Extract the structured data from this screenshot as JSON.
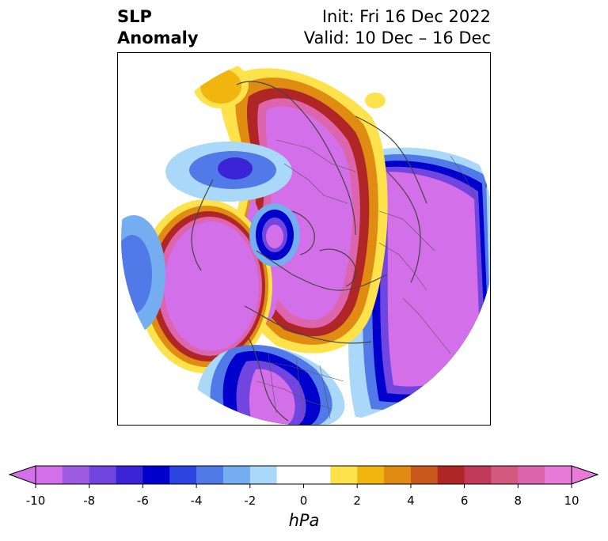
{
  "title": {
    "variable_line1": "SLP",
    "variable_line2": "Anomaly",
    "init_line": "Init: Fri 16 Dec 2022",
    "valid_line": "Valid: 10 Dec – 16 Dec"
  },
  "colorbar": {
    "unit": "hPa",
    "tick_labels": [
      "-10",
      "-8",
      "-6",
      "-4",
      "-2",
      "0",
      "2",
      "4",
      "6",
      "8",
      "10"
    ],
    "bins": [
      {
        "from": -10,
        "to": -9,
        "color": "#d36fe8"
      },
      {
        "from": -9,
        "to": -8,
        "color": "#a05be3"
      },
      {
        "from": -8,
        "to": -7,
        "color": "#7145df"
      },
      {
        "from": -7,
        "to": -6,
        "color": "#3a24d6"
      },
      {
        "from": -6,
        "to": -5,
        "color": "#0000cc"
      },
      {
        "from": -5,
        "to": -4,
        "color": "#2c45e2"
      },
      {
        "from": -4,
        "to": -3,
        "color": "#517ae8"
      },
      {
        "from": -3,
        "to": -2,
        "color": "#74aef0"
      },
      {
        "from": -2,
        "to": -1,
        "color": "#aad8f8"
      },
      {
        "from": -1,
        "to": 1,
        "color": "#ffffff"
      },
      {
        "from": 1,
        "to": 2,
        "color": "#fde24c"
      },
      {
        "from": 2,
        "to": 3,
        "color": "#f0b60f"
      },
      {
        "from": 3,
        "to": 4,
        "color": "#e08b12"
      },
      {
        "from": 4,
        "to": 5,
        "color": "#c8581c"
      },
      {
        "from": 5,
        "to": 6,
        "color": "#b02626"
      },
      {
        "from": 6,
        "to": 7,
        "color": "#c23a5a"
      },
      {
        "from": 7,
        "to": 8,
        "color": "#d15a7e"
      },
      {
        "from": 8,
        "to": 9,
        "color": "#dd65ad"
      },
      {
        "from": 9,
        "to": 10,
        "color": "#e87bd8"
      }
    ],
    "over_color": "#e87bd8",
    "under_color": "#d36fe8"
  },
  "map": {
    "projection": "north-polar-stereographic",
    "features": [
      "coastlines",
      "country-borders",
      "state-borders"
    ]
  }
}
